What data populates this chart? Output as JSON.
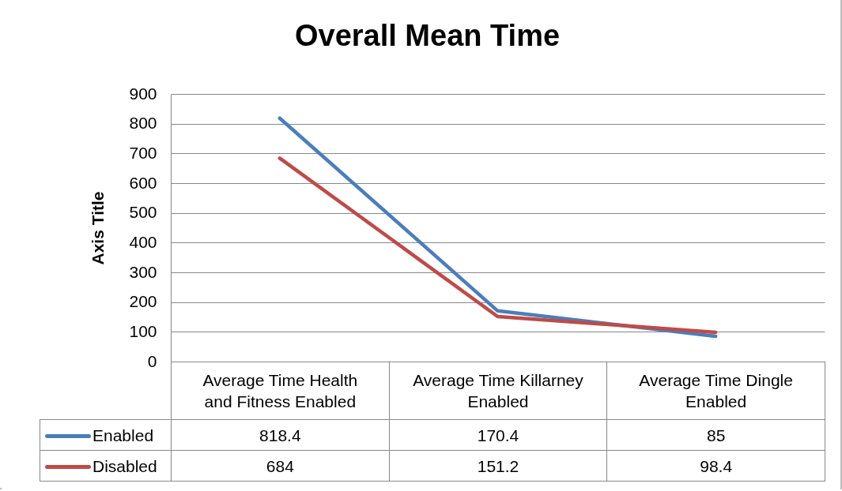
{
  "chart_data": {
    "type": "line",
    "title": "Overall Mean Time",
    "ylabel": "Axis Title",
    "categories": [
      "Average Time Health and Fitness Enabled",
      "Average Time Killarney Enabled",
      "Average Time Dingle Enabled"
    ],
    "series": [
      {
        "name": "Enabled",
        "color": "#4a7ebb",
        "values": [
          818.4,
          170.4,
          85
        ]
      },
      {
        "name": "Disabled",
        "color": "#be4b48",
        "values": [
          684,
          151.2,
          98.4
        ]
      }
    ],
    "ylim": [
      0,
      900
    ],
    "yticks": [
      0,
      100,
      200,
      300,
      400,
      500,
      600,
      700,
      800,
      900
    ],
    "grid": "y",
    "legend": "bottom",
    "data_labels": true
  }
}
